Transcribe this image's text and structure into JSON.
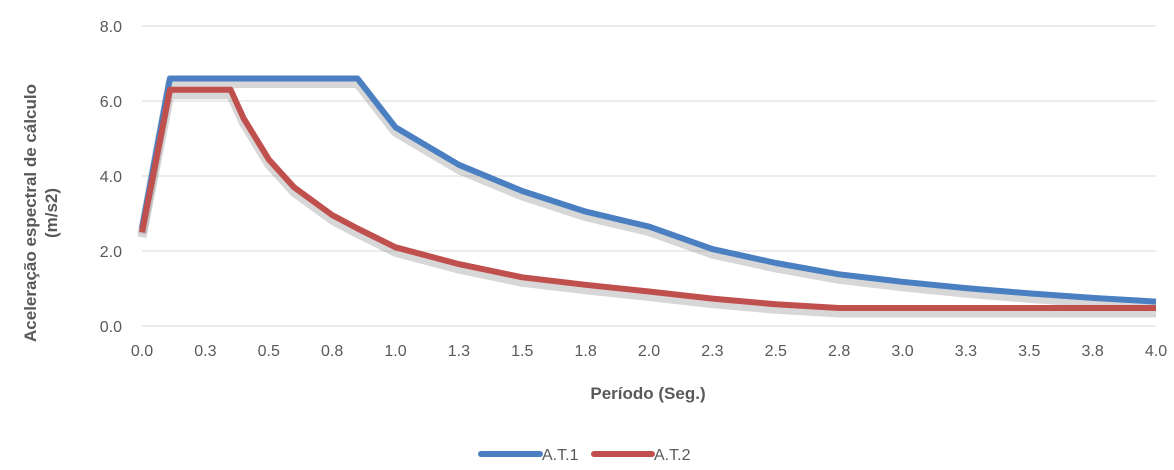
{
  "chart_data": {
    "type": "line",
    "title": "",
    "xlabel": "Período (Seg.)",
    "ylabel_line1": "Aceleração  espectral de cálculo",
    "ylabel_line2": "(m/s2)",
    "xlim": [
      0,
      4
    ],
    "ylim": [
      0,
      8
    ],
    "x_ticks": [
      "0.0",
      "0.3",
      "0.5",
      "0.8",
      "1.0",
      "1.3",
      "1.5",
      "1.8",
      "2.0",
      "2.3",
      "2.5",
      "2.8",
      "3.0",
      "3.3",
      "3.5",
      "3.8",
      "4.0"
    ],
    "y_ticks": [
      "0.0",
      "2.0",
      "4.0",
      "6.0",
      "8.0"
    ],
    "grid": true,
    "legend_position": "bottom",
    "series": [
      {
        "name": "A.T.1",
        "color": "#4a7fc1",
        "points": [
          [
            0.0,
            2.6
          ],
          [
            0.11,
            6.6
          ],
          [
            0.2,
            6.6
          ],
          [
            0.4,
            6.6
          ],
          [
            0.6,
            6.6
          ],
          [
            0.85,
            6.6
          ],
          [
            1.0,
            5.3
          ],
          [
            1.25,
            4.3
          ],
          [
            1.5,
            3.6
          ],
          [
            1.75,
            3.05
          ],
          [
            2.0,
            2.65
          ],
          [
            2.25,
            2.05
          ],
          [
            2.5,
            1.68
          ],
          [
            2.75,
            1.38
          ],
          [
            3.0,
            1.18
          ],
          [
            3.25,
            1.01
          ],
          [
            3.5,
            0.87
          ],
          [
            3.75,
            0.75
          ],
          [
            4.0,
            0.65
          ]
        ]
      },
      {
        "name": "A.T.2",
        "color": "#c0504d",
        "points": [
          [
            0.0,
            2.5
          ],
          [
            0.11,
            6.3
          ],
          [
            0.2,
            6.3
          ],
          [
            0.35,
            6.3
          ],
          [
            0.4,
            5.55
          ],
          [
            0.5,
            4.44
          ],
          [
            0.6,
            3.7
          ],
          [
            0.75,
            2.96
          ],
          [
            0.85,
            2.6
          ],
          [
            1.0,
            2.1
          ],
          [
            1.25,
            1.65
          ],
          [
            1.5,
            1.3
          ],
          [
            1.75,
            1.1
          ],
          [
            2.0,
            0.92
          ],
          [
            2.25,
            0.73
          ],
          [
            2.5,
            0.58
          ],
          [
            2.75,
            0.48
          ],
          [
            3.0,
            0.48
          ],
          [
            3.5,
            0.48
          ],
          [
            4.0,
            0.48
          ]
        ]
      }
    ]
  }
}
